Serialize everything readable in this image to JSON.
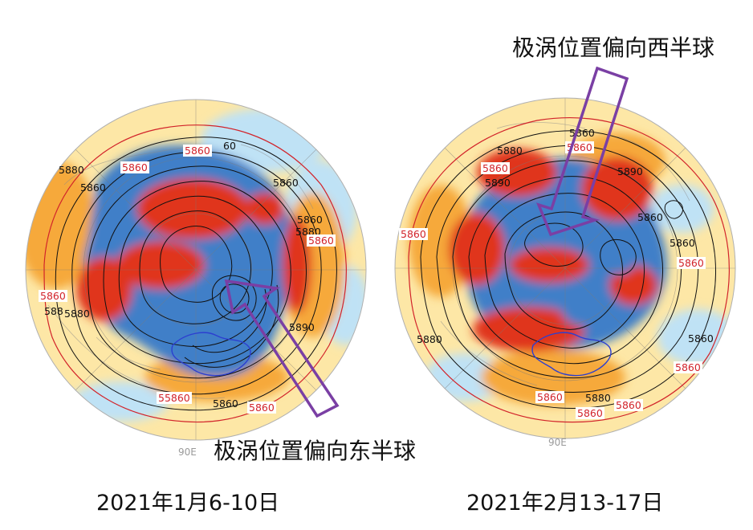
{
  "panels": [
    {
      "id": "left",
      "date": "2021年1月6-10日",
      "callout": "极涡位置偏向东半球",
      "meridian_label": "90E",
      "black_labels": [
        "5880",
        "5860",
        "60",
        "5860",
        "5860",
        "5880",
        "5890",
        "588",
        "5880",
        "5860"
      ],
      "red_labels": [
        "5860",
        "5860",
        "5860",
        "5860",
        "5860",
        "55860"
      ]
    },
    {
      "id": "right",
      "date": "2021年2月13-17日",
      "callout": "极涡位置偏向西半球",
      "meridian_label": "90E",
      "black_labels": [
        "5860",
        "5880",
        "5890",
        "5890",
        "5860",
        "5860",
        "5880",
        "5880",
        "5860"
      ],
      "red_labels": [
        "5860",
        "5860",
        "5860",
        "5860",
        "5860",
        "5860",
        "5860",
        "5860"
      ]
    }
  ],
  "colors": {
    "vortex_blue": "#3f7fc8",
    "cold_light": "#bfe2f5",
    "warm_orange": "#f6a93b",
    "warm_red": "#e0341d",
    "warm_pale": "#fde7a6",
    "arrow_purple": "#7a3fa4",
    "contour_black": "#111111",
    "contour_red": "#d2232a",
    "plateau_outline": "#2c3fd0"
  }
}
